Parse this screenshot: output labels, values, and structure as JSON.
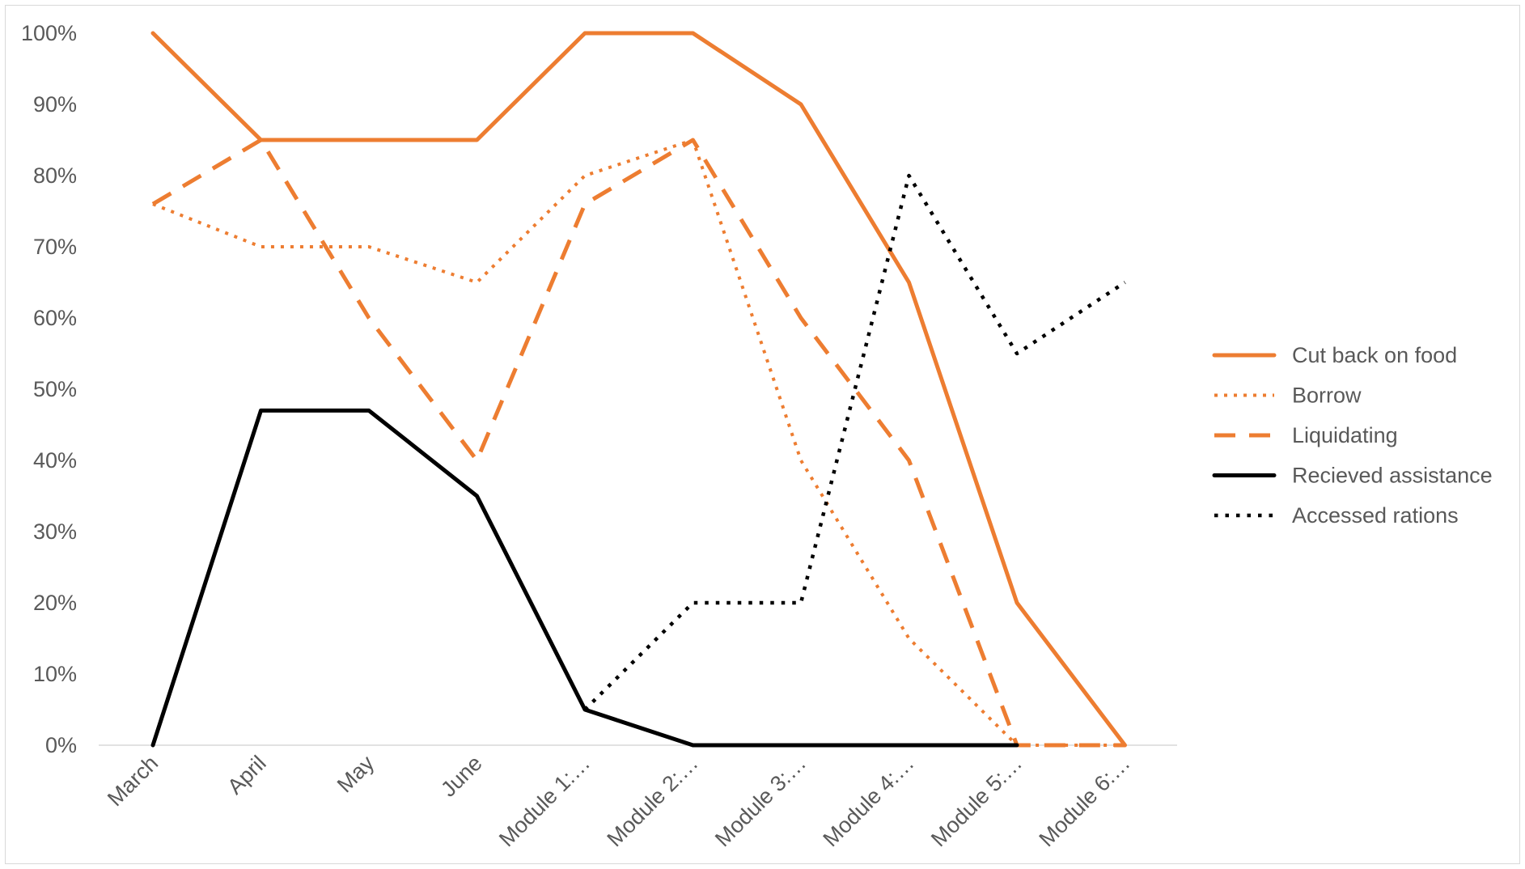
{
  "chart_data": {
    "type": "line",
    "title": "",
    "xlabel": "",
    "ylabel": "",
    "categories": [
      "March",
      "April",
      "May",
      "June",
      "Module 1:…",
      "Module 2:…",
      "Module 3:…",
      "Module 4:…",
      "Module 5:…",
      "Module 6:…"
    ],
    "y_ticks": [
      "0%",
      "10%",
      "20%",
      "30%",
      "40%",
      "50%",
      "60%",
      "70%",
      "80%",
      "90%",
      "100%"
    ],
    "ylim": [
      0,
      100
    ],
    "grid": false,
    "legend_position": "right",
    "series": [
      {
        "name": "Cut back on food",
        "color": "#ED7D31",
        "style": "solid",
        "values": [
          100,
          85,
          85,
          85,
          100,
          100,
          90,
          65,
          20,
          0
        ]
      },
      {
        "name": "Borrow",
        "color": "#ED7D31",
        "style": "dotted",
        "values": [
          76,
          70,
          70,
          65,
          80,
          85,
          40,
          15,
          0,
          0
        ]
      },
      {
        "name": "Liquidating",
        "color": "#ED7D31",
        "style": "dashed",
        "values": [
          76,
          85,
          60,
          40,
          76,
          85,
          60,
          40,
          0,
          0
        ]
      },
      {
        "name": "Recieved assistance",
        "color": "#000000",
        "style": "solid",
        "values": [
          0,
          47,
          47,
          35,
          5,
          0,
          0,
          0,
          0,
          null
        ]
      },
      {
        "name": "Accessed rations",
        "color": "#000000",
        "style": "dotted",
        "values": [
          null,
          null,
          null,
          null,
          5,
          20,
          20,
          80,
          55,
          65
        ]
      }
    ]
  }
}
